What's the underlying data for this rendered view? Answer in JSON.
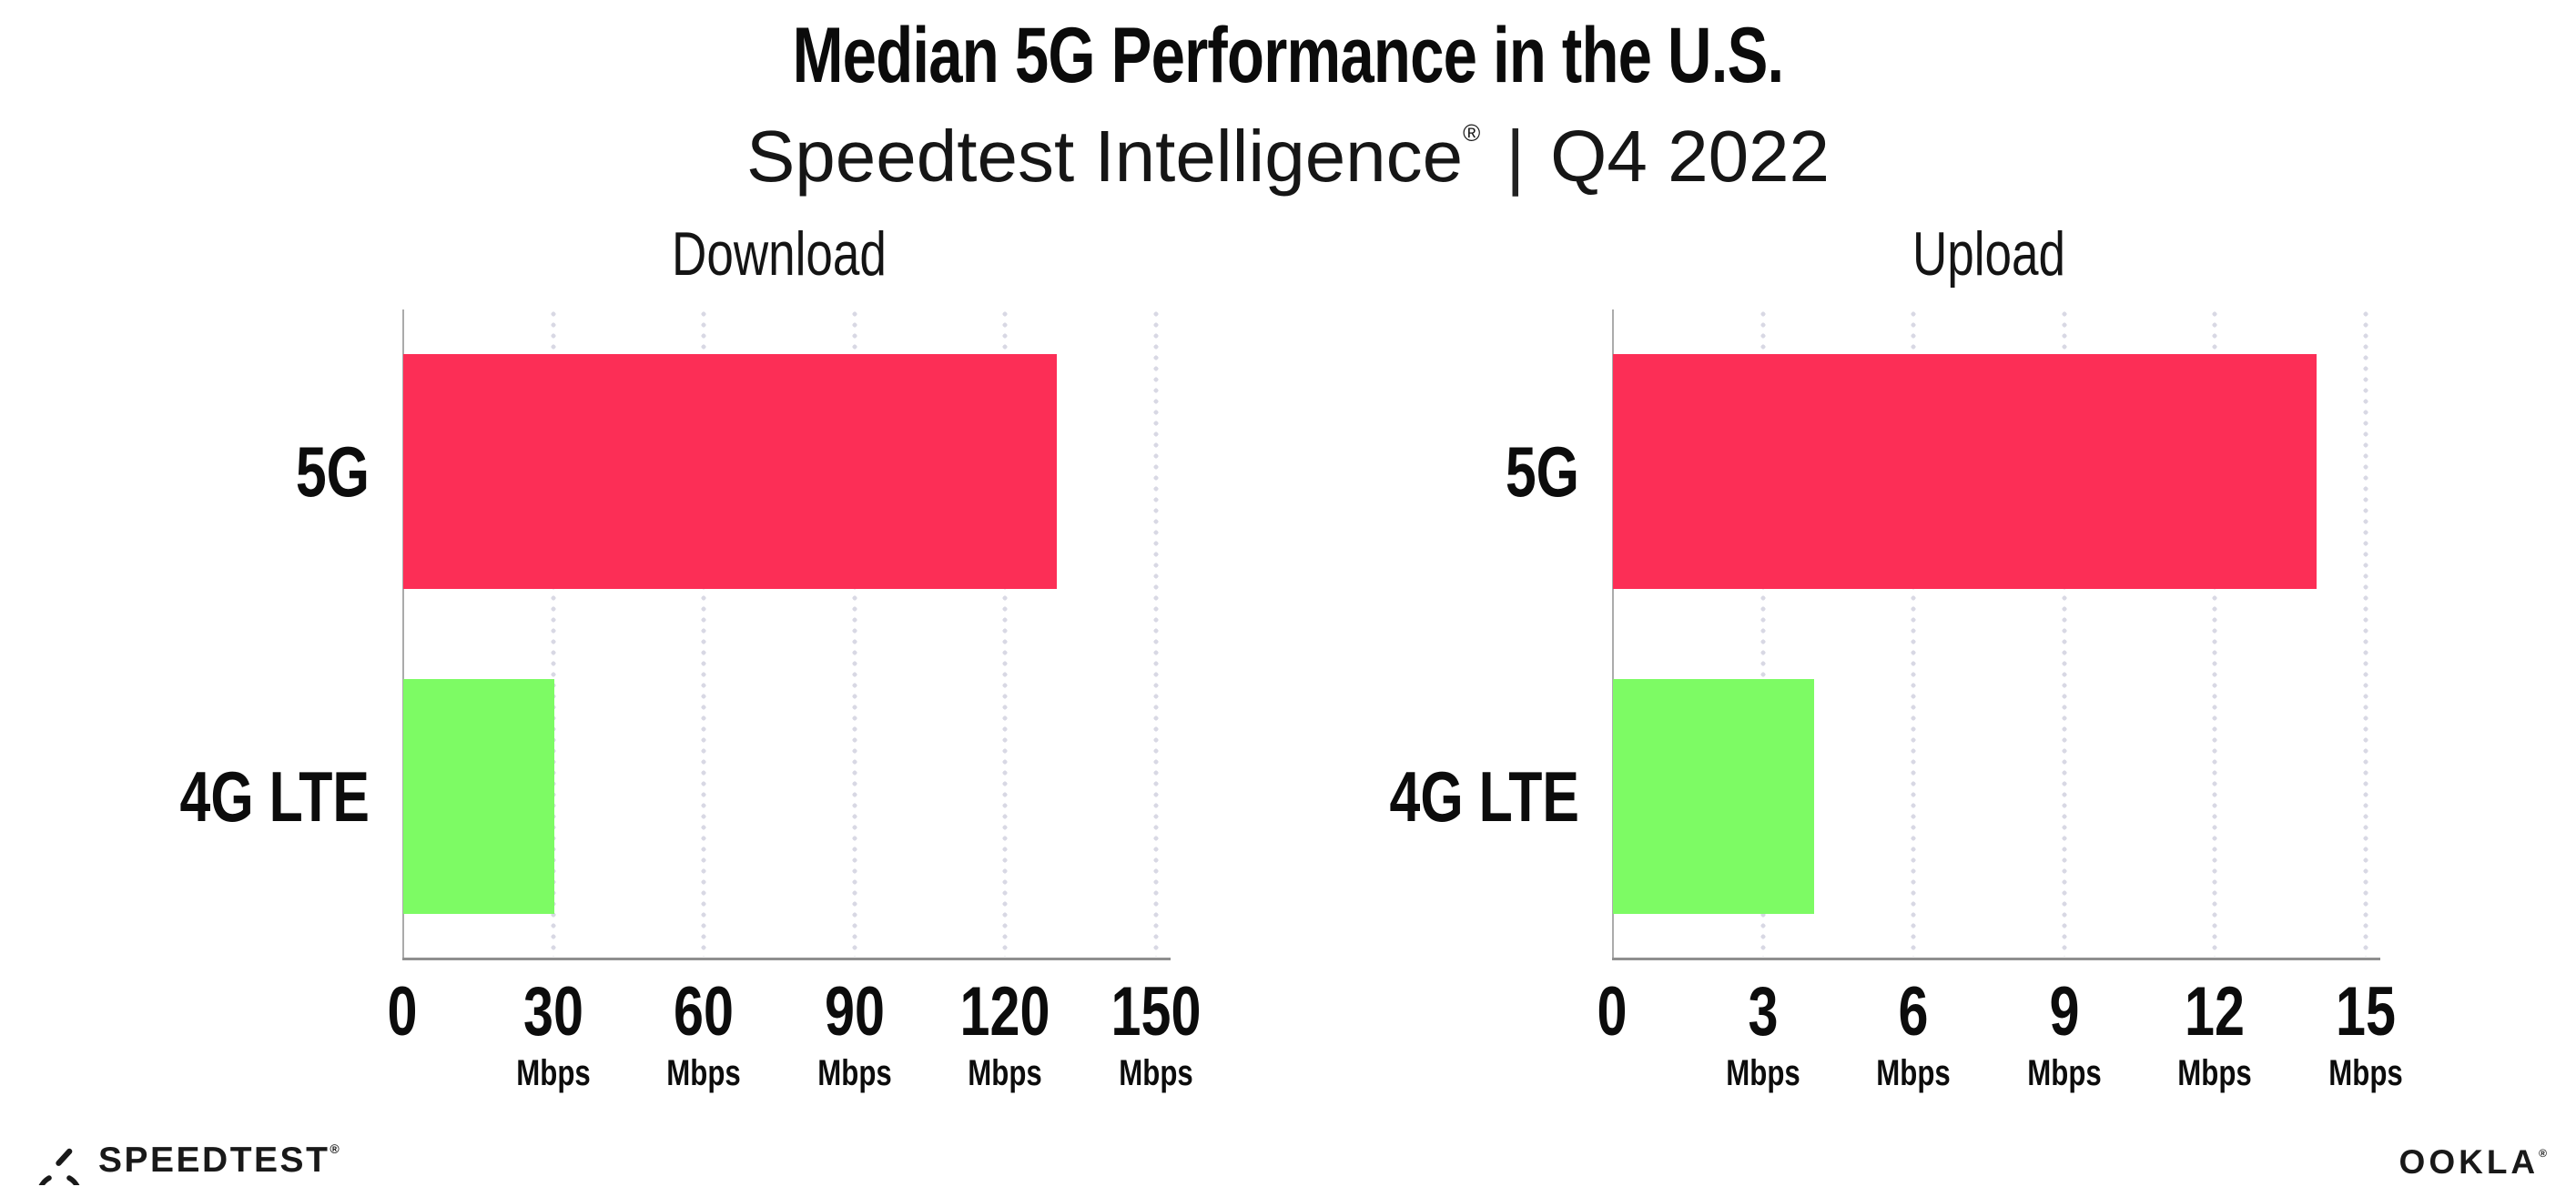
{
  "header": {
    "title": "Median 5G Performance in the U.S.",
    "subtitle": {
      "brand": "Speedtest Intelligence",
      "registered_mark": "®",
      "separator": "|",
      "period": "Q4 2022"
    }
  },
  "chart_data": [
    {
      "type": "bar",
      "orientation": "horizontal",
      "title": "Download",
      "categories": [
        "5G",
        "4G LTE"
      ],
      "values": [
        130,
        30
      ],
      "unit": "Mbps",
      "xlim": [
        0,
        150
      ],
      "xticks": [
        0,
        30,
        60,
        90,
        120,
        150
      ],
      "bar_colors": [
        "#fc2e56",
        "#7dfb64"
      ],
      "grid": "dotted-vertical",
      "legend": "none"
    },
    {
      "type": "bar",
      "orientation": "horizontal",
      "title": "Upload",
      "categories": [
        "5G",
        "4G LTE"
      ],
      "values": [
        14,
        4
      ],
      "unit": "Mbps",
      "xlim": [
        0,
        15
      ],
      "xticks": [
        0,
        3,
        6,
        9,
        12,
        15
      ],
      "bar_colors": [
        "#fc2e56",
        "#7dfb64"
      ],
      "grid": "dotted-vertical",
      "legend": "none"
    }
  ],
  "footer": {
    "speedtest_label": "SPEEDTEST",
    "speedtest_mark": "®",
    "ookla_label": "OOKLA",
    "ookla_mark": "®"
  },
  "colors": {
    "bar_5g": "#fc2e56",
    "bar_4g_lte": "#7dfb64",
    "x_axis": "#8f8f8f",
    "y_axis": "#ababab",
    "grid_dots": "#d8d8e4",
    "text": "#0c0c0c"
  }
}
